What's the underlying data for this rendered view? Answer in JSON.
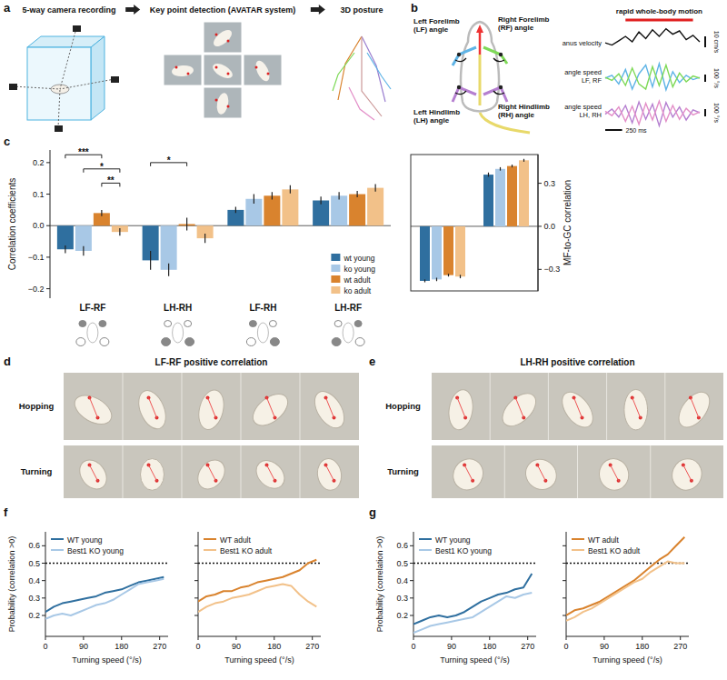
{
  "panels": {
    "a": {
      "label": "a",
      "steps": [
        "5-way camera recording",
        "Key point detection (AVATAR system)",
        "3D posture"
      ]
    },
    "b": {
      "label": "b",
      "limb_labels": [
        "Left Forelimb (LF) angle",
        "Right Forelimb (RF) angle",
        "Left Hindlimb (LH) angle",
        "Right Hindlimb (RH) angle"
      ],
      "rapid_motion": {
        "label": "rapid whole-body motion",
        "start": 300,
        "end": 1300
      },
      "t": [
        0,
        100,
        200,
        300,
        400,
        500,
        600,
        700,
        800,
        900,
        1000,
        1100,
        1200,
        1300,
        1400
      ],
      "trace_groups": [
        {
          "name": "anus velocity",
          "series": [
            {
              "color": "#111111",
              "values": [
                14,
                12,
                16,
                20,
                15,
                24,
                18,
                26,
                20,
                27,
                22,
                25,
                17,
                21,
                15
              ]
            }
          ]
        },
        {
          "name": "angle speed LF, RF",
          "series": [
            {
              "color": "#5fb4e6",
              "values": [
                0,
                40,
                -80,
                120,
                -150,
                60,
                180,
                -120,
                200,
                -160,
                90,
                -60,
                40,
                -20,
                10
              ]
            },
            {
              "color": "#7ed957",
              "values": [
                10,
                -30,
                60,
                -100,
                140,
                -80,
                -150,
                160,
                -100,
                180,
                -120,
                70,
                -50,
                30,
                0
              ]
            }
          ]
        },
        {
          "name": "angle speed LH, RH",
          "series": [
            {
              "color": "#b57fd0",
              "values": [
                -20,
                50,
                -60,
                100,
                -140,
                150,
                -90,
                120,
                -180,
                140,
                -60,
                80,
                -100,
                40,
                0
              ]
            },
            {
              "color": "#e38fc8",
              "values": [
                20,
                -40,
                80,
                -120,
                90,
                -160,
                130,
                -100,
                160,
                -120,
                100,
                -90,
                60,
                -30,
                10
              ]
            }
          ]
        }
      ],
      "velocity_scale": {
        "value": 10,
        "label": "10 cm/s"
      },
      "angle_scale": {
        "value": 100,
        "label": "100 °/s"
      },
      "time_scale": {
        "value": 250,
        "label": "250 ms"
      }
    },
    "c": {
      "label": "c"
    },
    "d": {
      "label": "d",
      "title": "LF-RF positive correlation",
      "rows": [
        "Hopping",
        "Turning"
      ]
    },
    "e": {
      "label": "e",
      "title": "LH-RH positive correlation",
      "rows": [
        "Hopping",
        "Turning"
      ]
    },
    "f": {
      "label": "f"
    },
    "g": {
      "label": "g"
    }
  },
  "chart_data": [
    {
      "type": "bar",
      "y_label": "Correlation coefficients",
      "categories": [
        "LF-RF",
        "LH-RH",
        "LF-RH",
        "LH-RF"
      ],
      "series": [
        {
          "name": "wt young",
          "color": "#2f6f9f",
          "values": [
            -0.075,
            -0.11,
            0.05,
            0.08
          ],
          "errors": [
            0.012,
            0.03,
            0.01,
            0.012
          ]
        },
        {
          "name": "ko young",
          "color": "#a8c8e6",
          "values": [
            -0.08,
            -0.14,
            0.085,
            0.095
          ],
          "errors": [
            0.015,
            0.02,
            0.015,
            0.012
          ]
        },
        {
          "name": "wt adult",
          "color": "#d9832e",
          "values": [
            0.04,
            0.005,
            0.095,
            0.1
          ],
          "errors": [
            0.01,
            0.02,
            0.012,
            0.01
          ]
        },
        {
          "name": "ko adult",
          "color": "#f2c189",
          "values": [
            -0.02,
            -0.04,
            0.115,
            0.12
          ],
          "errors": [
            0.012,
            0.015,
            0.013,
            0.012
          ]
        }
      ],
      "ylim": [
        -0.23,
        0.24
      ],
      "yticks": [
        {
          "value": -0.2,
          "label": "−0.2"
        },
        {
          "value": -0.1,
          "label": "−0.1"
        },
        {
          "value": 0,
          "label": "0.0"
        },
        0.1,
        0.2
      ],
      "legend": "lower right",
      "annotations": [
        {
          "text": "***",
          "category": 0,
          "from_series": 0,
          "to_series": 2,
          "y": 0.225
        },
        {
          "text": "*",
          "category": 0,
          "from_series": 1,
          "to_series": 3,
          "y": 0.18
        },
        {
          "text": "**",
          "category": 0,
          "from_series": 2,
          "to_series": 3,
          "y": 0.135
        },
        {
          "text": "*",
          "category": 1,
          "from_series": 0,
          "to_series": 2,
          "y": 0.2
        }
      ]
    },
    {
      "type": "bar",
      "y_label": "MF-to-GC correlation",
      "categories": [
        null,
        null
      ],
      "series": [
        {
          "color": "#2f6f9f",
          "values": [
            -0.38,
            0.36
          ],
          "errors": [
            0.01,
            0.015
          ]
        },
        {
          "color": "#a8c8e6",
          "values": [
            -0.37,
            0.4
          ],
          "errors": [
            0.012,
            0.012
          ]
        },
        {
          "color": "#d9832e",
          "values": [
            -0.34,
            0.42
          ],
          "errors": [
            0.01,
            0.01
          ]
        },
        {
          "color": "#f2c189",
          "values": [
            -0.35,
            0.46
          ],
          "errors": [
            0.012,
            0.01
          ]
        }
      ],
      "ylim": [
        -0.45,
        0.5
      ],
      "yticks": [
        {
          "value": -0.3,
          "label": "−0.3"
        },
        {
          "value": 0,
          "label": "0.0"
        },
        0.3
      ],
      "tick_labels": "y"
    },
    {
      "type": "line",
      "x_label": "Turning speed (°/s)",
      "y_label": "Probability (correlation >0)",
      "x": [
        0,
        20,
        40,
        60,
        80,
        100,
        120,
        140,
        160,
        180,
        200,
        220,
        240,
        260,
        280
      ],
      "series": [
        {
          "name": "WT young",
          "color": "#2f6f9f",
          "values": [
            0.22,
            0.25,
            0.27,
            0.28,
            0.29,
            0.3,
            0.31,
            0.33,
            0.34,
            0.35,
            0.37,
            0.39,
            0.4,
            0.41,
            0.42
          ]
        },
        {
          "name": "Best1 KO young",
          "color": "#a8c8e6",
          "values": [
            0.18,
            0.2,
            0.21,
            0.2,
            0.22,
            0.24,
            0.26,
            0.27,
            0.29,
            0.32,
            0.35,
            0.38,
            0.39,
            0.4,
            0.41
          ]
        }
      ],
      "xlim": [
        0,
        290
      ],
      "xticks": [
        0,
        90,
        180,
        270
      ],
      "ylim": [
        0.08,
        0.68
      ],
      "yticks": [
        0.2,
        0.3,
        0.4,
        0.5,
        0.6
      ],
      "reference_line": 0.5,
      "legend": "upper left"
    },
    {
      "type": "line",
      "x_label": "Turning speed (°/s)",
      "x": [
        0,
        20,
        40,
        60,
        80,
        100,
        120,
        140,
        160,
        180,
        200,
        220,
        240,
        260,
        280
      ],
      "series": [
        {
          "name": "WT adult",
          "color": "#d9832e",
          "values": [
            0.28,
            0.31,
            0.32,
            0.34,
            0.34,
            0.36,
            0.37,
            0.39,
            0.4,
            0.41,
            0.42,
            0.44,
            0.46,
            0.5,
            0.52
          ]
        },
        {
          "name": "Best1 KO adult",
          "color": "#f2c189",
          "values": [
            0.22,
            0.25,
            0.27,
            0.28,
            0.3,
            0.31,
            0.32,
            0.34,
            0.36,
            0.37,
            0.38,
            0.37,
            0.32,
            0.28,
            0.25
          ]
        }
      ],
      "xlim": [
        0,
        290
      ],
      "xticks": [
        0,
        90,
        180,
        270
      ],
      "ylim": [
        0.08,
        0.68
      ],
      "yticks": [
        0.2,
        0.3,
        0.4,
        0.5,
        0.6
      ],
      "reference_line": 0.5,
      "legend": "upper left",
      "tick_labels": "x"
    },
    {
      "type": "line",
      "x_label": "Turning speed (°/s)",
      "y_label": "Probability (correlation >0)",
      "x": [
        0,
        20,
        40,
        60,
        80,
        100,
        120,
        140,
        160,
        180,
        200,
        220,
        240,
        260,
        280
      ],
      "series": [
        {
          "name": "WT young",
          "color": "#2f6f9f",
          "values": [
            0.15,
            0.17,
            0.19,
            0.2,
            0.19,
            0.2,
            0.22,
            0.25,
            0.28,
            0.3,
            0.32,
            0.33,
            0.35,
            0.36,
            0.44
          ]
        },
        {
          "name": "Best1 KO young",
          "color": "#a8c8e6",
          "values": [
            0.1,
            0.12,
            0.14,
            0.15,
            0.16,
            0.17,
            0.18,
            0.19,
            0.22,
            0.25,
            0.28,
            0.31,
            0.3,
            0.32,
            0.33
          ]
        }
      ],
      "xlim": [
        0,
        290
      ],
      "xticks": [
        0,
        90,
        180,
        270
      ],
      "ylim": [
        0.08,
        0.68
      ],
      "yticks": [
        0.2,
        0.3,
        0.4,
        0.5,
        0.6
      ],
      "reference_line": 0.5,
      "legend": "upper left"
    },
    {
      "type": "line",
      "x_label": "Turning speed (°/s)",
      "x": [
        0,
        20,
        40,
        60,
        80,
        100,
        120,
        140,
        160,
        180,
        200,
        220,
        240,
        260,
        280
      ],
      "series": [
        {
          "name": "WT adult",
          "color": "#d9832e",
          "values": [
            0.2,
            0.23,
            0.24,
            0.26,
            0.28,
            0.31,
            0.34,
            0.37,
            0.4,
            0.44,
            0.48,
            0.52,
            0.55,
            0.6,
            0.65
          ]
        },
        {
          "name": "Best1 KO adult",
          "color": "#f2c189",
          "values": [
            0.17,
            0.19,
            0.22,
            0.24,
            0.27,
            0.3,
            0.33,
            0.36,
            0.39,
            0.41,
            0.45,
            0.48,
            0.51,
            0.5,
            0.5
          ]
        }
      ],
      "xlim": [
        0,
        290
      ],
      "xticks": [
        0,
        90,
        180,
        270
      ],
      "ylim": [
        0.08,
        0.68
      ],
      "yticks": [
        0.2,
        0.3,
        0.4,
        0.5,
        0.6
      ],
      "reference_line": 0.5,
      "legend": "upper left",
      "tick_labels": "x"
    }
  ]
}
